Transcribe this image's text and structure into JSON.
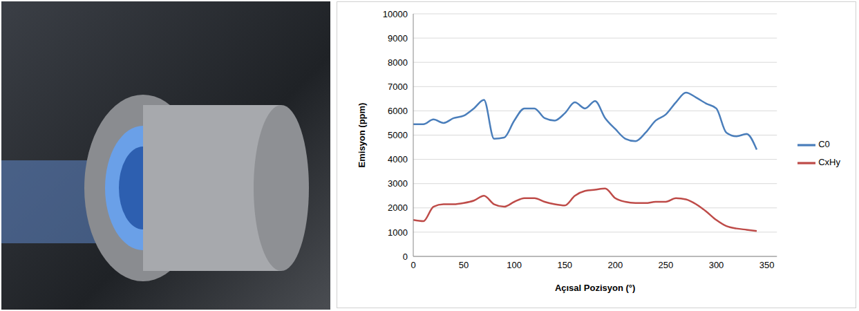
{
  "chart_data": {
    "type": "line",
    "x_label": "Açısal Pozisyon (°)",
    "y_label": "Emisyon (ppm)",
    "x": [
      0,
      10,
      20,
      30,
      40,
      50,
      60,
      70,
      80,
      90,
      100,
      110,
      120,
      130,
      140,
      150,
      160,
      170,
      180,
      190,
      200,
      210,
      220,
      230,
      240,
      250,
      260,
      270,
      280,
      290,
      300,
      310,
      320,
      330,
      340
    ],
    "series": [
      {
        "name": "C0",
        "color": "#4a7ebb",
        "values": [
          5450,
          5450,
          5650,
          5500,
          5700,
          5800,
          6100,
          6450,
          4850,
          4900,
          5600,
          6100,
          6100,
          5700,
          5600,
          5900,
          6350,
          6100,
          6400,
          5700,
          5250,
          4850,
          4750,
          5100,
          5600,
          5850,
          6350,
          6750,
          6550,
          6300,
          6100,
          5100,
          4950,
          5050,
          4400
        ]
      },
      {
        "name": "CxHy",
        "color": "#be4b48",
        "values": [
          1500,
          1450,
          2050,
          2150,
          2150,
          2200,
          2300,
          2500,
          2150,
          2050,
          2250,
          2400,
          2400,
          2250,
          2150,
          2100,
          2500,
          2700,
          2750,
          2800,
          2400,
          2250,
          2200,
          2200,
          2250,
          2250,
          2400,
          2350,
          2150,
          1850,
          1500,
          1250,
          1150,
          1100,
          1050
        ]
      }
    ],
    "xlim": [
      0,
      360
    ],
    "xticks": [
      0,
      50,
      100,
      150,
      200,
      250,
      300,
      350
    ],
    "ylim": [
      0,
      10000
    ],
    "yticks": [
      0,
      1000,
      2000,
      3000,
      4000,
      5000,
      6000,
      7000,
      8000,
      9000,
      10000
    ],
    "grid": true,
    "legend": "right"
  }
}
